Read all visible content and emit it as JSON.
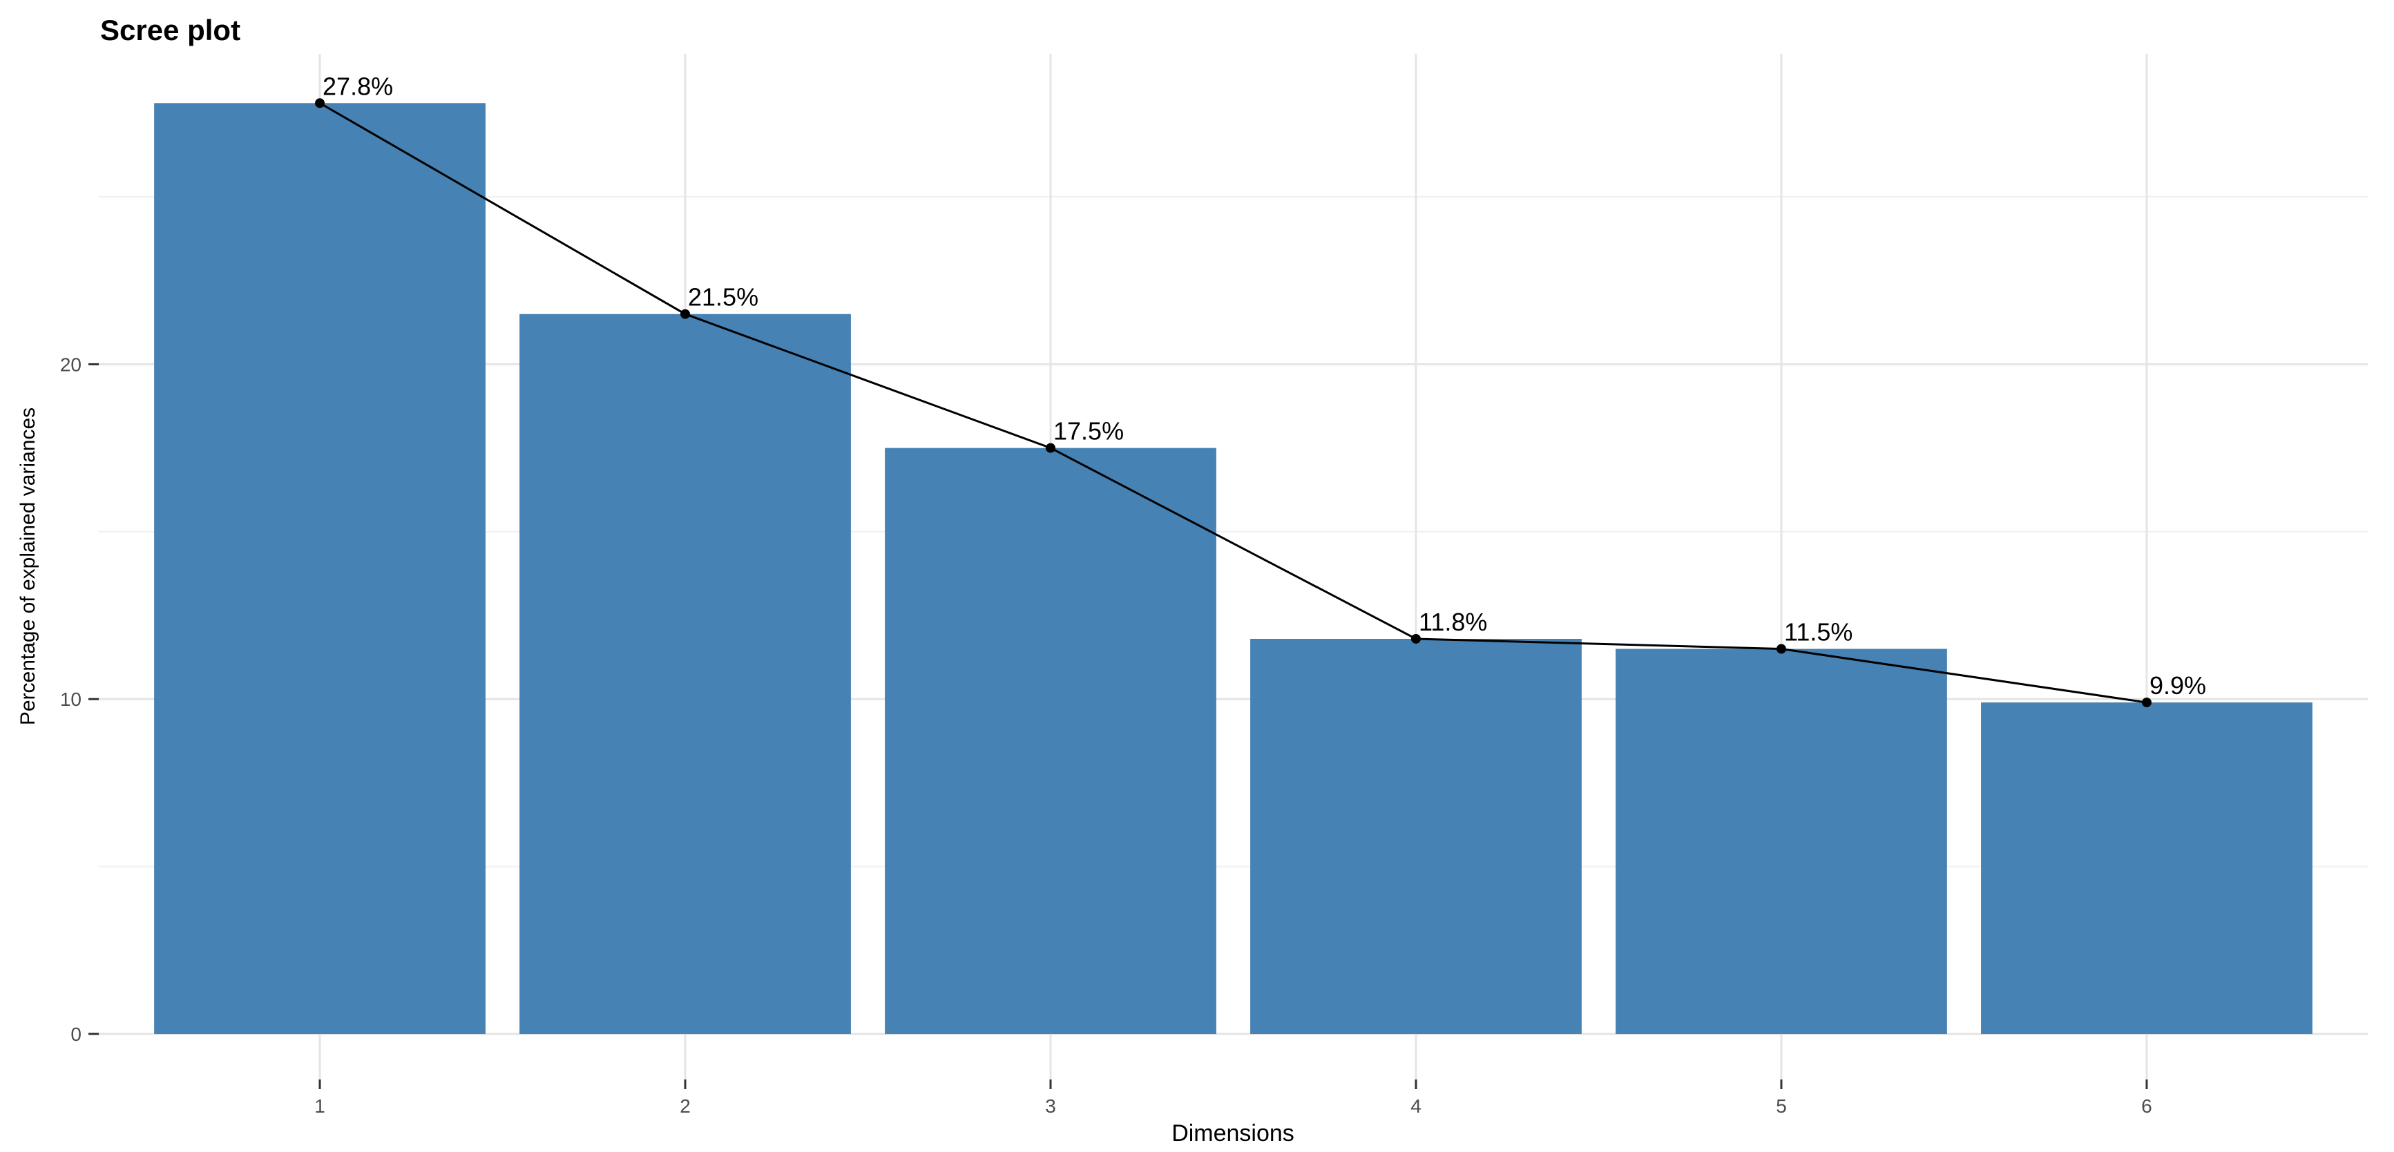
{
  "figure": {
    "title": "Scree plot",
    "xlabel": "Dimensions",
    "ylabel": "Percentage of explained variances"
  },
  "chart_data": {
    "type": "bar",
    "overlay": "line",
    "title": "Scree plot",
    "xlabel": "Dimensions",
    "ylabel": "Percentage of explained variances",
    "categories": [
      1,
      2,
      3,
      4,
      5,
      6
    ],
    "values": [
      27.8,
      21.5,
      17.5,
      11.8,
      11.5,
      9.9
    ],
    "point_labels": [
      "27.8%",
      "21.5%",
      "17.5%",
      "11.8%",
      "11.5%",
      "9.9%"
    ],
    "x_tick_labels": [
      "1",
      "2",
      "3",
      "4",
      "5",
      "6"
    ],
    "y_ticks": [
      0,
      10,
      20
    ],
    "y_tick_labels": [
      "0",
      "10",
      "20"
    ],
    "y_minor_ticks": [
      5,
      15,
      25
    ],
    "xlim": [
      0.395,
      6.605
    ],
    "ylim": [
      -1.36,
      29.27
    ],
    "bar_width": 0.907,
    "grid": "major+minor",
    "legend": "none",
    "colors": {
      "bar_fill": "#4682B4",
      "line": "#000000",
      "point": "#000000",
      "grid_major": "#e5e5e5",
      "grid_minor": "#f0f0f0",
      "tick_mark": "#333333",
      "tick_label": "#4d4d4d",
      "axis_title": "#000000",
      "title": "#000000",
      "background": "#ffffff"
    }
  }
}
